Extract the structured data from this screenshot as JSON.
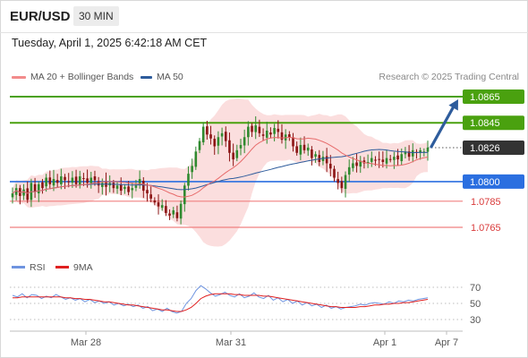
{
  "header": {
    "symbol": "EUR/USD",
    "timeframe": "30 MIN",
    "datetime": "Tuesday, April 1, 2025 6:42:18 AM CET"
  },
  "legend": {
    "ma20_bb": "MA 20 + Bollinger Bands",
    "ma50": "MA 50",
    "rsi": "RSI",
    "rsi_ma": "9MA"
  },
  "research": "Research © 2025 Trading Central",
  "colors": {
    "up_candle": "#2f8a2f",
    "down_candle": "#8b1414",
    "bollinger": "#f6b6b6",
    "ma20": "#e76b6b",
    "ma50": "#2e5c9c",
    "resistance": "#4aa10f",
    "pivot": "#2b6fe0",
    "support": "#f08080",
    "price": "#333333",
    "arrow": "#2e5c9c",
    "rsi_line": "#6f94e0",
    "rsi_ma": "#e02020"
  },
  "chart_data": {
    "type": "candlestick",
    "ylim": [
      1.0745,
      1.0875
    ],
    "price_levels": [
      {
        "label": "1.0865",
        "value": 1.0865,
        "kind": "resistance"
      },
      {
        "label": "1.0845",
        "value": 1.0845,
        "kind": "resistance"
      },
      {
        "label": "1.0826",
        "value": 1.0826,
        "kind": "current"
      },
      {
        "label": "1.0800",
        "value": 1.08,
        "kind": "pivot"
      },
      {
        "label": "1.0785",
        "value": 1.0785,
        "kind": "support"
      },
      {
        "label": "1.0765",
        "value": 1.0765,
        "kind": "support"
      }
    ],
    "x_axis": {
      "ticks": [
        "Mar 28",
        "Mar 31",
        "Apr 1",
        "Apr 7"
      ]
    },
    "projection": {
      "from": 1.0826,
      "to": 1.0865
    },
    "candles_close": [
      1.0791,
      1.0795,
      1.0789,
      1.0794,
      1.0786,
      1.0799,
      1.0792,
      1.0798,
      1.0795,
      1.0803,
      1.0798,
      1.0802,
      1.0799,
      1.0804,
      1.0801,
      1.08,
      1.0803,
      1.0798,
      1.0804,
      1.0802,
      1.0799,
      1.0803,
      1.0801,
      1.0797,
      1.0799,
      1.0796,
      1.0799,
      1.0795,
      1.0797,
      1.0793,
      1.0796,
      1.0792,
      1.0795,
      1.0797,
      1.0802,
      1.0793,
      1.0791,
      1.0787,
      1.0784,
      1.0781,
      1.0782,
      1.0776,
      1.0774,
      1.0778,
      1.0772,
      1.0783,
      1.0797,
      1.0806,
      1.0812,
      1.0823,
      1.0831,
      1.0842,
      1.0836,
      1.0833,
      1.0827,
      1.0834,
      1.0837,
      1.0831,
      1.0822,
      1.0817,
      1.0824,
      1.0828,
      1.0834,
      1.0842,
      1.0838,
      1.0843,
      1.0837,
      1.0835,
      1.0839,
      1.0836,
      1.0841,
      1.0838,
      1.0832,
      1.0836,
      1.0834,
      1.0827,
      1.0822,
      1.0828,
      1.0824,
      1.0826,
      1.0818,
      1.0821,
      1.0815,
      1.0819,
      1.0814,
      1.081,
      1.0803,
      1.0799,
      1.0795,
      1.0805,
      1.0811,
      1.0814,
      1.0812,
      1.0816,
      1.0814,
      1.0815,
      1.0818,
      1.0816,
      1.0817,
      1.0815,
      1.0818,
      1.0817,
      1.0819,
      1.0817,
      1.0821,
      1.0823,
      1.0819,
      1.0824,
      1.0822,
      1.0824,
      1.0823,
      1.0826
    ],
    "rsi_ticks": [
      70,
      50,
      30
    ],
    "rsi_values": [
      60,
      58,
      62,
      57,
      61,
      60,
      56,
      59,
      57,
      61,
      58,
      55,
      57,
      54,
      56,
      52,
      55,
      51,
      53,
      50,
      52,
      48,
      50,
      47,
      49,
      46,
      48,
      44,
      46,
      41,
      43,
      40,
      44,
      40,
      38,
      40,
      50,
      56,
      66,
      72,
      68,
      63,
      59,
      61,
      64,
      60,
      58,
      62,
      57,
      59,
      63,
      58,
      56,
      60,
      54,
      57,
      52,
      55,
      50,
      53,
      48,
      51,
      47,
      49,
      45,
      48,
      44,
      46,
      43,
      45,
      46,
      47,
      49,
      48,
      50,
      51,
      50,
      49,
      52,
      50,
      53,
      52,
      54,
      53,
      55,
      56,
      57
    ],
    "rsi_ma_values": [
      57,
      57,
      58,
      58,
      58,
      58,
      58,
      58,
      58,
      58,
      58,
      57,
      57,
      56,
      56,
      55,
      55,
      54,
      53,
      52,
      52,
      51,
      50,
      49,
      48,
      48,
      47,
      46,
      45,
      44,
      43,
      42,
      42,
      41,
      40,
      40,
      42,
      45,
      50,
      56,
      59,
      61,
      62,
      62,
      62,
      62,
      61,
      61,
      60,
      60,
      60,
      60,
      59,
      59,
      58,
      57,
      56,
      55,
      54,
      53,
      52,
      51,
      50,
      49,
      48,
      47,
      46,
      46,
      45,
      45,
      45,
      45,
      46,
      46,
      47,
      48,
      48,
      49,
      49,
      50,
      50,
      51,
      51,
      52,
      53,
      54,
      55
    ]
  }
}
